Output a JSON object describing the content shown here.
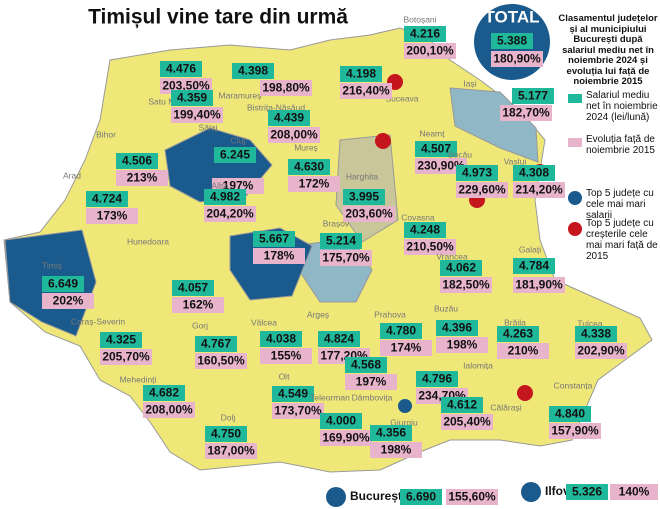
{
  "title": "Timișul vine tare din urmă",
  "total": {
    "label": "TOTAL",
    "salary": "5.388",
    "growth": "180,90%"
  },
  "legend": {
    "heading": "Clasamentul județelor și al municipiului București după salariul mediu net în noiembrie 2024 și evoluția lui față de noiembrie 2015",
    "items": [
      "Salariul mediu net în noiembrie 2024 (lei/lună)",
      "Evoluția față de noiembrie 2015",
      "Top 5 județe cu cele mai mari salarii",
      "Top 5 județe cu creșterile cele mai mari față de 2015"
    ]
  },
  "counties": [
    {
      "name": "Satu Mare",
      "salary": "4.476",
      "growth": "203,50%"
    },
    {
      "name": "Maramureș",
      "salary": "4.398",
      "growth": "198,80%"
    },
    {
      "name": "Botoșani",
      "salary": "4.216",
      "growth": "200,10%"
    },
    {
      "name": "Suceava",
      "salary": "4.198",
      "growth": "216,40%"
    },
    {
      "name": "Iași",
      "salary": "5.177",
      "growth": "182,70%"
    },
    {
      "name": "Bihor",
      "salary": "4.506",
      "growth": "213%"
    },
    {
      "name": "Sălaj",
      "salary": "4.359",
      "growth": "199,40%"
    },
    {
      "name": "Bistrița-Năsăud",
      "salary": "4.439",
      "growth": "208,00%"
    },
    {
      "name": "Neamț",
      "salary": "4.507",
      "growth": "230,90%"
    },
    {
      "name": "Cluj",
      "salary": "6.245",
      "growth": "197%"
    },
    {
      "name": "Vaslui",
      "salary": "4.308",
      "growth": "214,20%"
    },
    {
      "name": "Harghita",
      "salary": "3.995",
      "growth": "203,60%"
    },
    {
      "name": "Bacău",
      "salary": "4.973",
      "growth": "229,60%"
    },
    {
      "name": "Mureș",
      "salary": "4.630",
      "growth": "172%"
    },
    {
      "name": "Alba",
      "salary": "4.982",
      "growth": "204,20%"
    },
    {
      "name": "Arad",
      "salary": "4.724",
      "growth": "173%"
    },
    {
      "name": "Timiș",
      "salary": "6.649",
      "growth": "202%"
    },
    {
      "name": "Sibiu",
      "salary": "5.667",
      "growth": "178%"
    },
    {
      "name": "Brașov",
      "salary": "5.214",
      "growth": "175,70%"
    },
    {
      "name": "Covasna",
      "salary": "4.248",
      "growth": "210,50%"
    },
    {
      "name": "Vrancea",
      "salary": "4.062",
      "growth": "182,50%"
    },
    {
      "name": "Galați",
      "salary": "4.784",
      "growth": "181,90%"
    },
    {
      "name": "Hunedoara",
      "salary": "4.057",
      "growth": "162%"
    },
    {
      "name": "Caraș-Severin",
      "salary": "4.325",
      "growth": "205,70%"
    },
    {
      "name": "Gorj",
      "salary": "4.767",
      "growth": "160,50%"
    },
    {
      "name": "Vâlcea",
      "salary": "4.038",
      "growth": "155%"
    },
    {
      "name": "Argeș",
      "salary": "4.824",
      "growth": "177,20%"
    },
    {
      "name": "Prahova",
      "salary": "4.780",
      "growth": "174%"
    },
    {
      "name": "Buzău",
      "salary": "4.396",
      "growth": "198%"
    },
    {
      "name": "Brăila",
      "salary": "4.263",
      "growth": "210%"
    },
    {
      "name": "Tulcea",
      "salary": "4.338",
      "growth": "202,90%"
    },
    {
      "name": "Dâmbovița",
      "salary": "4.568",
      "growth": "197%"
    },
    {
      "name": "Mehedinți",
      "salary": "4.682",
      "growth": "208,00%"
    },
    {
      "name": "Ialomița",
      "salary": "4.796",
      "growth": "234,70%"
    },
    {
      "name": "Olt",
      "salary": "4.549",
      "growth": "173,70%"
    },
    {
      "name": "Călărași",
      "salary": "4.612",
      "growth": "205,40%"
    },
    {
      "name": "Constanța",
      "salary": "4.840",
      "growth": "157,90%"
    },
    {
      "name": "Dolj",
      "salary": "4.750",
      "growth": "187,00%"
    },
    {
      "name": "Teleorman",
      "salary": "4.000",
      "growth": "169,90%"
    },
    {
      "name": "Giurgiu",
      "salary": "4.356",
      "growth": "198%"
    }
  ],
  "bucharest": {
    "name": "București",
    "salary": "6.690",
    "growth": "155,60%"
  },
  "ilfov": {
    "name": "Ilfov",
    "salary": "5.326",
    "growth": "140%"
  }
}
